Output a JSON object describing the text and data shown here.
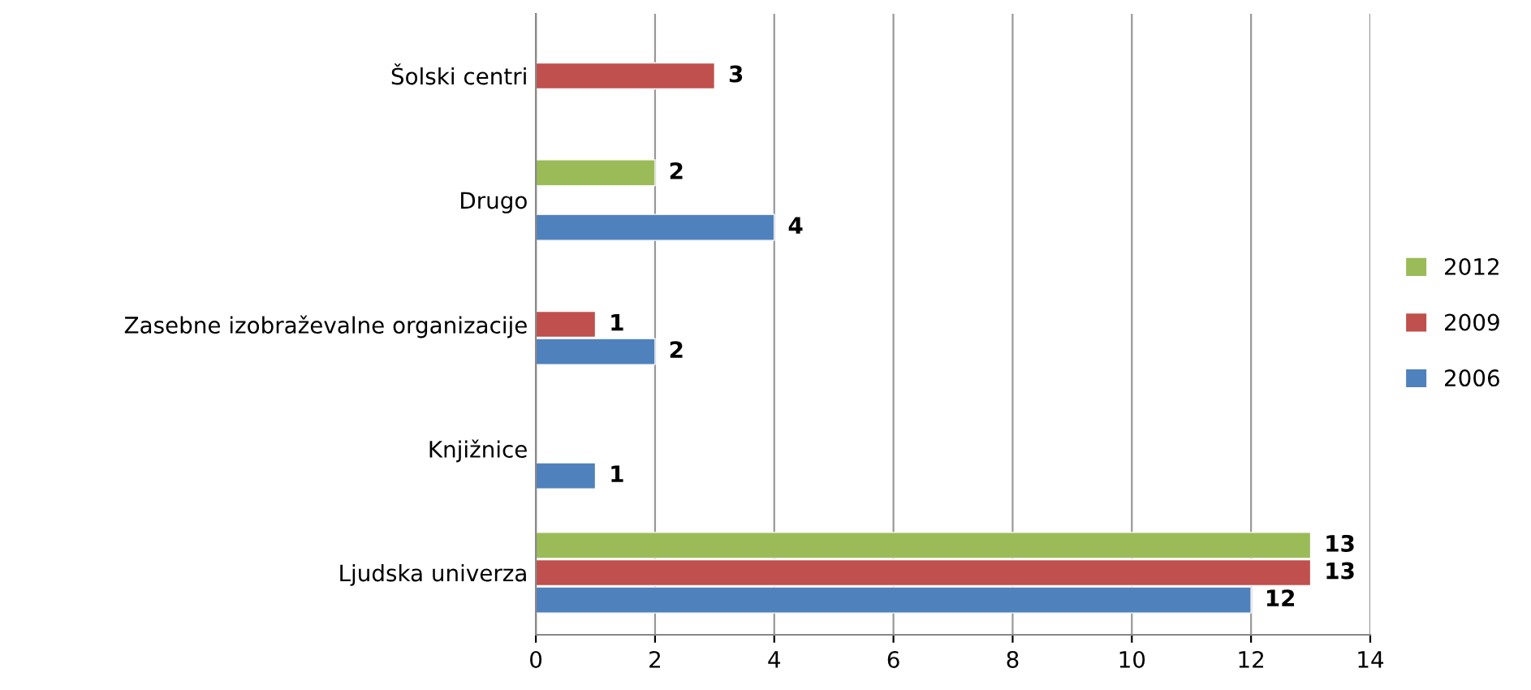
{
  "chart_data": {
    "type": "bar",
    "orientation": "horizontal",
    "categories": [
      "Šolski centri",
      "Drugo",
      "Zasebne izobraževalne organizacije",
      "Knjižnice",
      "Ljudska univerza"
    ],
    "series": [
      {
        "name": "2006",
        "color": "#4f81bd",
        "values": [
          null,
          4,
          2,
          1,
          12
        ]
      },
      {
        "name": "2009",
        "color": "#c0504d",
        "values": [
          3,
          null,
          1,
          null,
          13
        ]
      },
      {
        "name": "2012",
        "color": "#9bbb59",
        "values": [
          null,
          2,
          null,
          null,
          13
        ]
      }
    ],
    "xlim": [
      0,
      14
    ],
    "xticks": [
      0,
      2,
      4,
      6,
      8,
      10,
      12,
      14
    ],
    "grid": "x",
    "legend": "right",
    "data_labels": true
  }
}
